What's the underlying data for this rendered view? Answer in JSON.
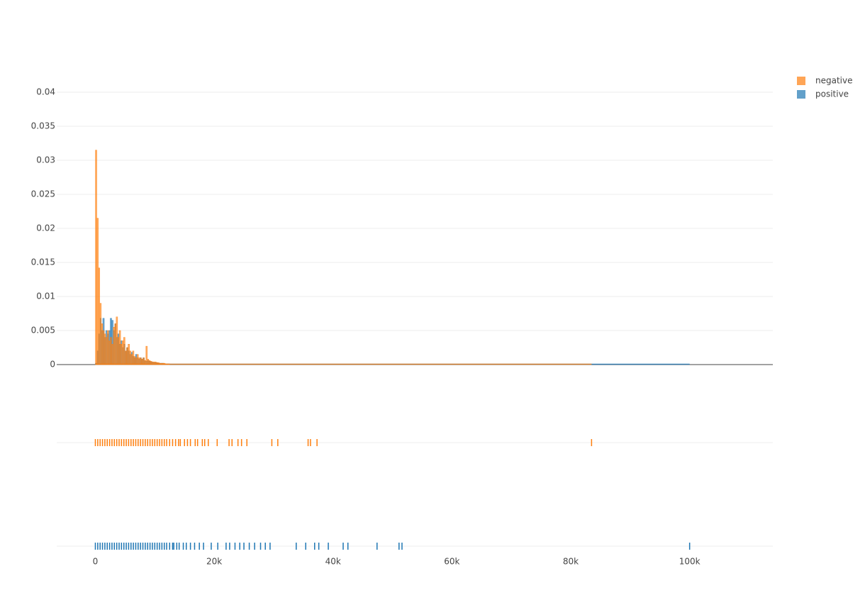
{
  "chart_data": {
    "type": "distplot",
    "xlim": [
      -6500,
      114000
    ],
    "xticks": [
      0,
      {
        "value": 20000,
        "label": "20k"
      },
      {
        "value": 40000,
        "label": "40k"
      },
      {
        "value": 60000,
        "label": "60k"
      },
      {
        "value": 80000,
        "label": "80k"
      },
      {
        "value": 100000,
        "label": "100k"
      }
    ],
    "ylim": [
      0,
      0.04
    ],
    "yticks": [
      0,
      0.005,
      0.01,
      0.015,
      0.02,
      0.025,
      0.03,
      0.035,
      0.04
    ],
    "grid": true,
    "legend": "top-right",
    "series": [
      {
        "name": "negative",
        "color": "#ff7f0e",
        "bins": [
          0,
          250,
          500,
          750,
          1000,
          1250,
          1500,
          1750,
          2000,
          2250,
          2500,
          2750,
          3000,
          3250,
          3500,
          3750,
          4000,
          4250,
          4500,
          4750,
          5000,
          5250,
          5500,
          5750,
          6000,
          6250,
          6500,
          6750,
          7000,
          7250,
          7500,
          7750,
          8000,
          8250,
          8500,
          8750,
          9000,
          9250,
          9500,
          9750,
          10000,
          10250,
          10500,
          10750,
          11000,
          11250,
          11500,
          11750,
          12000,
          12250,
          12500
        ],
        "values": [
          0.0315,
          0.0215,
          0.0142,
          0.009,
          0.006,
          0.005,
          0.0045,
          0.004,
          0.005,
          0.0035,
          0.004,
          0.003,
          0.0055,
          0.006,
          0.007,
          0.004,
          0.005,
          0.003,
          0.0035,
          0.004,
          0.002,
          0.0025,
          0.003,
          0.002,
          0.0015,
          0.002,
          0.0012,
          0.001,
          0.0015,
          0.001,
          0.001,
          0.0008,
          0.001,
          0.0006,
          0.0027,
          0.0008,
          0.0006,
          0.0005,
          0.0004,
          0.0004,
          0.0004,
          0.0003,
          0.0003,
          0.0002,
          0.0002,
          0.0002,
          0.0002,
          0.0001,
          0.0001,
          0.0001
        ],
        "rug": [
          0,
          400,
          800,
          1200,
          1600,
          2000,
          2400,
          2800,
          3200,
          3600,
          4000,
          4400,
          4800,
          5200,
          5600,
          6000,
          6400,
          6800,
          7200,
          7600,
          8000,
          8400,
          8800,
          9200,
          9600,
          10000,
          10400,
          10800,
          11200,
          11600,
          12000,
          12500,
          13000,
          13500,
          14000,
          14300,
          15000,
          15500,
          16000,
          16800,
          17200,
          18000,
          18400,
          19000,
          20500,
          22500,
          23000,
          24000,
          24600,
          25500,
          29700,
          30700,
          35800,
          36200,
          37300,
          83500
        ]
      },
      {
        "name": "positive",
        "color": "#1f77b4",
        "bins": [
          0,
          250,
          500,
          750,
          1000,
          1250,
          1500,
          1750,
          2000,
          2250,
          2500,
          2750,
          3000,
          3250,
          3500,
          3750,
          4000,
          4250,
          4500,
          4750,
          5000,
          5250,
          5500,
          5750,
          6000,
          6250,
          6500,
          6750,
          7000,
          7250,
          7500,
          7750,
          8000,
          8250,
          8500,
          8750,
          9000,
          9250,
          9500,
          9750,
          10000,
          10250,
          10500,
          10750,
          11000,
          11250,
          11500,
          11750,
          12000,
          12250,
          12500
        ],
        "values": [
          0.0002,
          0.002,
          0.0045,
          0.0068,
          0.005,
          0.0068,
          0.004,
          0.005,
          0.0045,
          0.005,
          0.0068,
          0.0065,
          0.005,
          0.006,
          0.004,
          0.0045,
          0.003,
          0.0035,
          0.0025,
          0.003,
          0.002,
          0.0025,
          0.002,
          0.0015,
          0.0018,
          0.0012,
          0.001,
          0.0015,
          0.001,
          0.0008,
          0.001,
          0.0008,
          0.001,
          0.0006,
          0.0005,
          0.0006,
          0.0005,
          0.0004,
          0.0004,
          0.0003,
          0.0003,
          0.0003,
          0.0002,
          0.0002,
          0.0002,
          0.0002,
          0.0001,
          0.0001,
          0.0001,
          0.0001
        ],
        "rug": [
          0,
          400,
          800,
          1200,
          1600,
          2000,
          2400,
          2800,
          3200,
          3600,
          4000,
          4400,
          4800,
          5200,
          5600,
          6000,
          6400,
          6800,
          7200,
          7600,
          8000,
          8400,
          8800,
          9200,
          9600,
          10000,
          10400,
          10800,
          11200,
          11600,
          12000,
          12500,
          13000,
          13200,
          13700,
          14100,
          14800,
          15300,
          16000,
          16700,
          17500,
          18200,
          19500,
          20600,
          22000,
          22600,
          23500,
          24300,
          25000,
          25900,
          26800,
          27800,
          28600,
          29400,
          33800,
          35400,
          36900,
          37600,
          39200,
          41700,
          42500,
          47400,
          51100,
          51600,
          100000
        ]
      }
    ]
  }
}
